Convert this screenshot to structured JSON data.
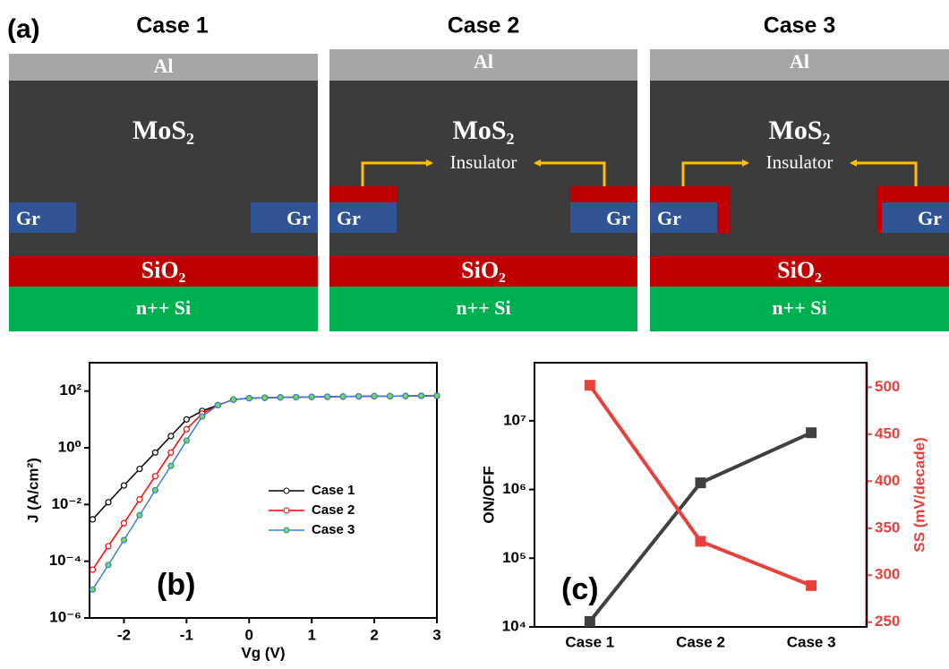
{
  "panel_a": {
    "label": "(a)",
    "cases": [
      {
        "title": "Case 1",
        "al": "Al",
        "mos2": "MoS₂",
        "gr": [
          "Gr",
          "Gr"
        ],
        "sio2": "SiO₂",
        "si": "n++ Si"
      },
      {
        "title": "Case 2",
        "al": "Al",
        "mos2": "MoS₂",
        "insulator": "Insulator",
        "gr": [
          "Gr",
          "Gr"
        ],
        "sio2": "SiO₂",
        "si": "n++ Si"
      },
      {
        "title": "Case 3",
        "al": "Al",
        "mos2": "MoS₂",
        "insulator": "Insulator",
        "gr": [
          "Gr",
          "Gr"
        ],
        "sio2": "SiO₂",
        "si": "n++ Si"
      }
    ]
  },
  "chart_data": [
    {
      "type": "line",
      "annotation": "(b)",
      "x_label": "Vg (V)",
      "y_label": "J (A/cm²)",
      "log_y": true,
      "x": [
        -2.5,
        -2.25,
        -2,
        -1.75,
        -1.5,
        -1.25,
        -1,
        -0.75,
        -0.5,
        -0.25,
        0,
        0.25,
        0.5,
        0.75,
        1,
        1.25,
        1.5,
        1.75,
        2,
        2.25,
        2.5,
        2.75,
        3
      ],
      "series": [
        {
          "name": "Case 1",
          "color": "#000000",
          "marker_color": "#ffffff",
          "values": [
            0.003,
            0.012,
            0.047,
            0.18,
            0.68,
            2.6,
            10,
            20,
            32,
            50,
            56,
            58,
            60,
            61,
            62,
            63,
            64,
            65,
            66,
            66,
            67,
            68,
            68
          ]
        },
        {
          "name": "Case 2",
          "color": "#ff0000",
          "marker_color": "#ffffff",
          "values": [
            5e-05,
            0.00034,
            0.0022,
            0.015,
            0.1,
            0.68,
            4.5,
            16,
            32,
            50,
            56,
            58,
            60,
            61,
            62,
            63,
            64,
            65,
            66,
            66,
            67,
            68,
            68
          ]
        },
        {
          "name": "Case 3",
          "color": "#3a7ee0",
          "marker_color": "#6fe04a",
          "values": [
            1e-05,
            7.4e-05,
            0.00056,
            0.0042,
            0.032,
            0.23,
            1.8,
            12.6,
            32,
            50,
            56,
            58,
            60,
            61,
            62,
            63,
            64,
            65,
            66,
            66,
            67,
            68,
            68
          ]
        }
      ],
      "xlim": [
        -2.55,
        3
      ],
      "xticks": [
        -2,
        -1,
        0,
        1,
        2,
        3
      ],
      "ylim": [
        1e-06,
        1000
      ],
      "yticks": [
        {
          "value": 1e-06,
          "label": "10⁻⁶"
        },
        {
          "value": 0.0001,
          "label": "10⁻⁴"
        },
        {
          "value": 0.01,
          "label": "10⁻²"
        },
        {
          "value": 1,
          "label": "10⁰"
        },
        {
          "value": 100,
          "label": "10²"
        }
      ],
      "legend": "center-right"
    },
    {
      "type": "line",
      "annotation": "(c)",
      "y_label": "ON/OFF",
      "y2_label": "SS (mV/decade)",
      "log_y": true,
      "categories": [
        "Case 1",
        "Case 2",
        "Case 3"
      ],
      "series": [
        {
          "color": "#404040",
          "values": [
            12000,
            1250000,
            6700000
          ]
        },
        {
          "color": "#e8413c",
          "axis": "y2",
          "values": [
            502,
            336,
            289
          ]
        }
      ],
      "ylim": [
        10000,
        70000000
      ],
      "yticks": [
        {
          "value": 10000,
          "label": "10⁴"
        },
        {
          "value": 100000,
          "label": "10⁵"
        },
        {
          "value": 1000000,
          "label": "10⁶"
        },
        {
          "value": 10000000,
          "label": "10⁷"
        }
      ],
      "y2lim": [
        245,
        526
      ],
      "y2ticks": [
        250,
        300,
        350,
        400,
        450,
        500
      ]
    }
  ]
}
